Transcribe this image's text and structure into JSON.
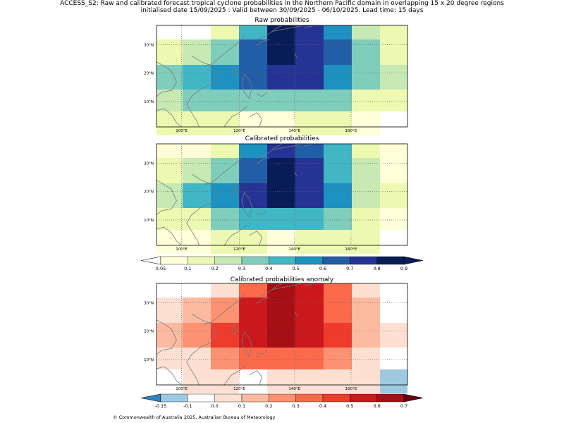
{
  "header": {
    "line1": "ACCESS_S2: Raw and calibrated forecast tropical cyclone probabilities in the Northern Pacific domain in overlapping 15 x 20 degree regions",
    "line2": "initialised date 15/09/2025 :  Valid between 30/09/2025 - 06/10/2025. Lead time: 15 days"
  },
  "panels": [
    {
      "title": "Raw probabilities",
      "scale": "prob",
      "rows": [
        [
          "<0.05",
          "<0.05",
          "0.1-0.2",
          "0.4-0.5",
          "0.8-0.9",
          "0.7-0.8",
          "0.5-0.6",
          "0.2-0.3",
          "0.1-0.2"
        ],
        [
          "0.1-0.2",
          "0.2-0.3",
          "0.3-0.4",
          "0.6-0.7",
          "0.8-0.9",
          "0.7-0.8",
          "0.6-0.7",
          "0.3-0.4",
          "0.1-0.2"
        ],
        [
          "0.3-0.4",
          "0.4-0.5",
          "0.5-0.6",
          "0.6-0.7",
          "0.7-0.8",
          "0.7-0.8",
          "0.5-0.6",
          "0.3-0.4",
          "0.2-0.3"
        ],
        [
          "0.2-0.3",
          "0.3-0.4",
          "0.3-0.4",
          "0.3-0.4",
          "0.3-0.4",
          "0.3-0.4",
          "0.3-0.4",
          "0.1-0.2",
          "0.1-0.2"
        ],
        [
          "0.1-0.2",
          "0.1-0.2",
          "0.1-0.2",
          "0.05-0.1",
          "0.05-0.1",
          "0.1-0.2",
          "0.1-0.2",
          "0.05-0.1",
          "<0.05"
        ]
      ]
    },
    {
      "title": "Calibrated probabilities",
      "scale": "prob",
      "rows": [
        [
          "0.05-0.1",
          "0.05-0.1",
          "0.1-0.2",
          "0.5-0.6",
          "0.7-0.8",
          "0.6-0.7",
          "0.4-0.5",
          "0.1-0.2",
          "0.05-0.1"
        ],
        [
          "0.1-0.2",
          "0.2-0.3",
          "0.3-0.4",
          "0.6-0.7",
          "0.8-0.9",
          "0.7-0.8",
          "0.4-0.5",
          "0.2-0.3",
          "0.05-0.1"
        ],
        [
          "0.2-0.3",
          "0.4-0.5",
          "0.5-0.6",
          "0.7-0.8",
          "0.8-0.9",
          "0.7-0.8",
          "0.5-0.6",
          "0.2-0.3",
          "0.1-0.2"
        ],
        [
          "0.1-0.2",
          "0.1-0.2",
          "0.3-0.4",
          "0.4-0.5",
          "0.4-0.5",
          "0.4-0.5",
          "0.3-0.4",
          "0.1-0.2",
          "0.05-0.1"
        ],
        [
          "0.05-0.1",
          "0.05-0.1",
          "0.1-0.2",
          "0.1-0.2",
          "0.05-0.1",
          "0.1-0.2",
          "0.1-0.2",
          "0.1-0.2",
          "<0.05"
        ]
      ]
    },
    {
      "title": "Calibrated probabilities anomaly",
      "scale": "anom",
      "rows": [
        [
          "-0.1-0.0",
          "-0.1-0.0",
          "0.0-0.1",
          "0.3-0.4",
          "0.6-0.7",
          "0.5-0.6",
          "0.3-0.4",
          "0.0-0.1",
          "-0.1-0.0"
        ],
        [
          "0.0-0.1",
          "0.1-0.2",
          "0.2-0.3",
          "0.5-0.6",
          "0.6-0.7",
          "0.5-0.6",
          "0.3-0.4",
          "0.1-0.2",
          "-0.1-0.0"
        ],
        [
          "0.1-0.2",
          "0.2-0.3",
          "0.4-0.5",
          "0.5-0.6",
          "0.6-0.7",
          "0.5-0.6",
          "0.4-0.5",
          "0.1-0.2",
          "0.0-0.1"
        ],
        [
          "0.0-0.1",
          "0.0-0.1",
          "0.2-0.3",
          "0.3-0.4",
          "0.3-0.4",
          "0.3-0.4",
          "0.2-0.3",
          "0.0-0.1",
          "-0.1-0.0"
        ],
        [
          "-0.1-0.0",
          "0.0-0.1",
          "0.0-0.1",
          "-0.1-0.0",
          "0.0-0.1",
          "0.0-0.1",
          "0.0-0.1",
          "0.0-0.1",
          "-0.15--0.1"
        ]
      ]
    }
  ],
  "map": {
    "lat_labels": [
      "10°N",
      "20°N",
      "30°N"
    ],
    "lon_labels": [
      "100°E",
      "120°E",
      "140°E",
      "160°E"
    ]
  },
  "colorbars": {
    "prob": {
      "ticks": [
        "0.05",
        "0.1",
        "0.2",
        "0.3",
        "0.4",
        "0.5",
        "0.6",
        "0.7",
        "0.8",
        "0.9"
      ],
      "colors": [
        "#ffffff",
        "#ffffd9",
        "#edf8b1",
        "#c7e9b4",
        "#7fcdbb",
        "#41b6c4",
        "#1d91c0",
        "#225ea8",
        "#253494",
        "#081d58",
        "#081d58"
      ]
    },
    "anom": {
      "ticks": [
        "-0.15",
        "-0.1",
        "0.0",
        "0.1",
        "0.2",
        "0.3",
        "0.4",
        "0.5",
        "0.6",
        "0.7"
      ],
      "colors": [
        "#3182bd",
        "#9ecae1",
        "#ffffff",
        "#fee0d2",
        "#fcbba1",
        "#fc9272",
        "#fb6a4a",
        "#ef3b2c",
        "#cb181d",
        "#a50f15",
        "#67000d"
      ]
    }
  },
  "credit": "© Commonwealth of Australia 2025, Australian Bureau of Meteorology"
}
